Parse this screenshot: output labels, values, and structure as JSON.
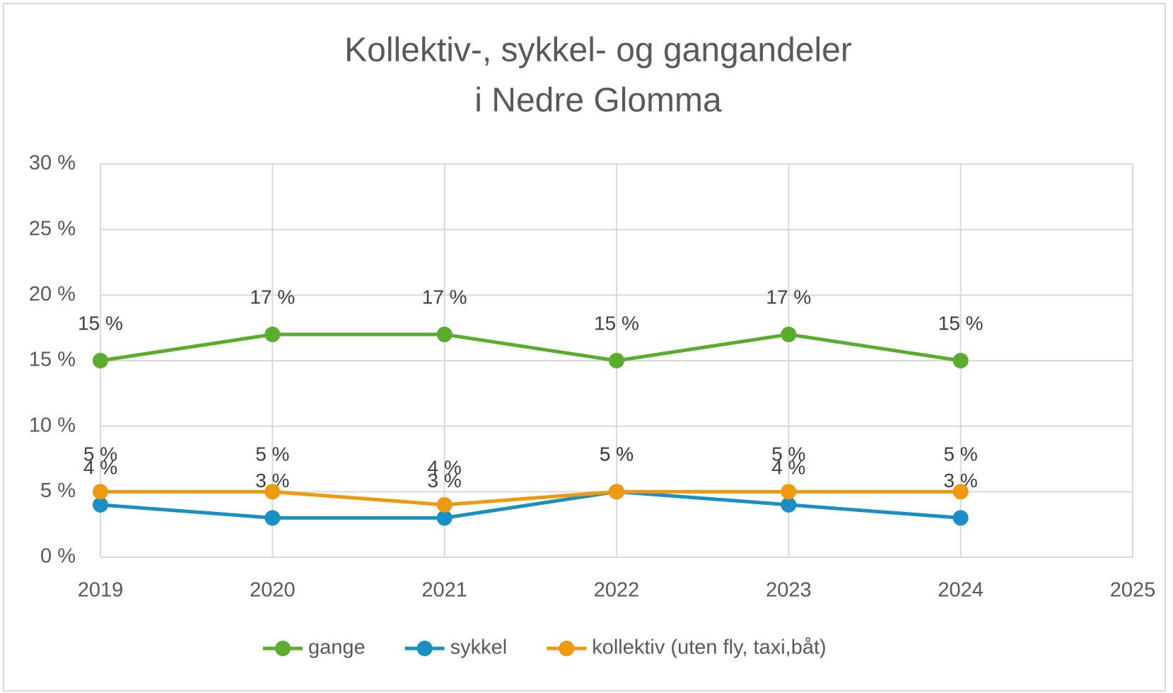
{
  "chart_data": {
    "type": "line",
    "title": [
      "Kollektiv-, sykkel- og gangandeler",
      "i Nedre Glomma"
    ],
    "x": [
      2019,
      2020,
      2021,
      2022,
      2023,
      2024
    ],
    "xlim": [
      2019,
      2025
    ],
    "xticks": [
      2019,
      2020,
      2021,
      2022,
      2023,
      2024,
      2025
    ],
    "ylim": [
      0,
      30
    ],
    "yticks": [
      {
        "value": 0,
        "label": "0 %"
      },
      {
        "value": 5,
        "label": "5 %"
      },
      {
        "value": 10,
        "label": "10 %"
      },
      {
        "value": 15,
        "label": "15 %"
      },
      {
        "value": 20,
        "label": "20 %"
      },
      {
        "value": 25,
        "label": "25 %"
      },
      {
        "value": 30,
        "label": "30 %"
      }
    ],
    "grid": true,
    "legend": "bottom",
    "series": [
      {
        "name": "gange",
        "color": "#5aab2e",
        "values": [
          15,
          17,
          17,
          15,
          17,
          15
        ],
        "value_labels": [
          "15 %",
          "17 %",
          "17 %",
          "15 %",
          "17 %",
          "15 %"
        ]
      },
      {
        "name": "sykkel",
        "color": "#1a8fc4",
        "values": [
          4,
          3,
          3,
          5,
          4,
          3
        ],
        "value_labels": [
          "4 %",
          "3 %",
          "3 %",
          "5 %",
          "4 %",
          "3 %"
        ]
      },
      {
        "name": "kollektiv (uten fly, taxi,båt)",
        "color": "#ee9a10",
        "values": [
          5,
          5,
          4,
          5,
          5,
          5
        ],
        "value_labels": [
          "5 %",
          "5 %",
          "4 %",
          "5 %",
          "5 %",
          "5 %"
        ]
      }
    ]
  }
}
